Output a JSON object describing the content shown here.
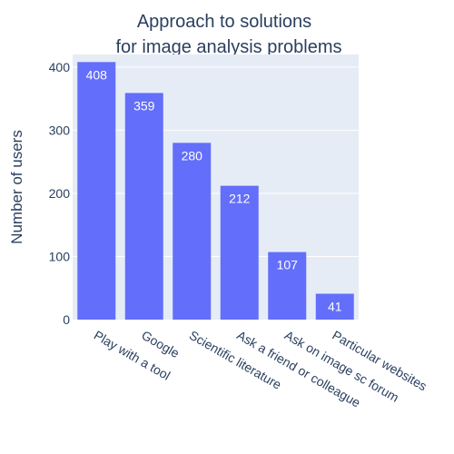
{
  "chart_data": {
    "type": "bar",
    "title_lines": [
      "Approach to solutions",
      "for image analysis problems"
    ],
    "xlabel": "",
    "ylabel": "Number of users",
    "categories": [
      "Play with a tool",
      "Google",
      "Scientific literature",
      "Ask a friend or colleague",
      "Ask on image sc forum",
      "Particular websites"
    ],
    "values": [
      408,
      359,
      280,
      212,
      107,
      41
    ],
    "ylim": [
      0,
      420
    ],
    "yticks": [
      0,
      100,
      200,
      300,
      400
    ],
    "grid": true,
    "legend": "none",
    "colors": {
      "bar": "#636efa",
      "plot_bg": "#e5ecf6",
      "grid": "#ffffff",
      "text": "#2a3f5f",
      "bar_label": "#ffffff"
    }
  }
}
